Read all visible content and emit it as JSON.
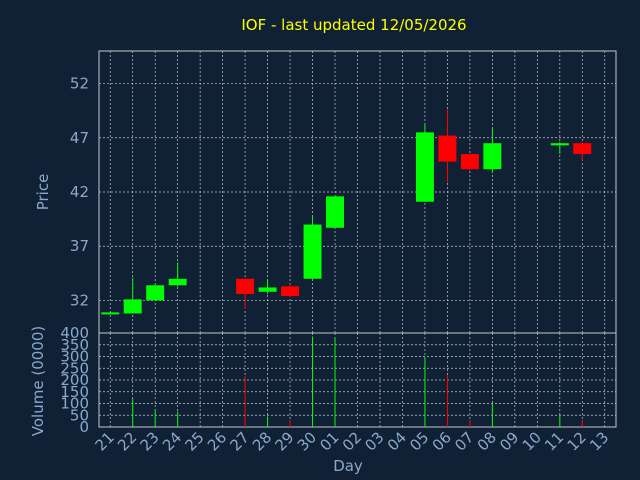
{
  "chart_data": {
    "type": "candlestick",
    "title": "IOF - last updated 12/05/2026",
    "xlabel": "Day",
    "price_panel": {
      "ylabel": "Price",
      "ylim": [
        29,
        55
      ],
      "yticks": [
        32,
        37,
        42,
        47,
        52
      ],
      "grid": true
    },
    "volume_panel": {
      "ylabel": "Volume (0000)",
      "ylim": [
        0,
        400
      ],
      "yticks": [
        0,
        50,
        100,
        150,
        200,
        250,
        300,
        350,
        400
      ],
      "grid": true
    },
    "x_tick_labels": [
      "21",
      "22",
      "23",
      "24",
      "25",
      "26",
      "27",
      "28",
      "29",
      "30",
      "01",
      "02",
      "03",
      "04",
      "05",
      "06",
      "07",
      "08",
      "09",
      "10",
      "11",
      "12",
      "13"
    ],
    "colors": {
      "up": "#00ff00",
      "down": "#ff0000",
      "background": "#102035",
      "grid": "#c8c8c8",
      "title": "#ffff00",
      "axis_text": "#8aa9cc"
    },
    "candles": [
      {
        "x": "21",
        "open": 30.8,
        "high": 30.9,
        "low": 30.7,
        "close": 30.9,
        "volume": 0
      },
      {
        "x": "22",
        "open": 30.8,
        "high": 34.1,
        "low": 30.8,
        "close": 32.1,
        "volume": 120
      },
      {
        "x": "23",
        "open": 32.0,
        "high": 33.5,
        "low": 32.0,
        "close": 33.4,
        "volume": 70
      },
      {
        "x": "24",
        "open": 33.4,
        "high": 35.5,
        "low": 33.3,
        "close": 34.0,
        "volume": 65
      },
      {
        "x": "27",
        "open": 34.0,
        "high": 34.0,
        "low": 31.2,
        "close": 32.6,
        "volume": 215
      },
      {
        "x": "28",
        "open": 32.8,
        "high": 33.9,
        "low": 32.6,
        "close": 33.2,
        "volume": 45
      },
      {
        "x": "29",
        "open": 33.3,
        "high": 33.5,
        "low": 32.3,
        "close": 32.4,
        "volume": 30
      },
      {
        "x": "30",
        "open": 34.0,
        "high": 39.7,
        "low": 34.0,
        "close": 39.0,
        "volume": 385
      },
      {
        "x": "01",
        "open": 38.7,
        "high": 41.6,
        "low": 38.6,
        "close": 41.6,
        "volume": 380
      },
      {
        "x": "05",
        "open": 41.1,
        "high": 48.2,
        "low": 41.1,
        "close": 47.5,
        "volume": 295
      },
      {
        "x": "06",
        "open": 47.2,
        "high": 49.6,
        "low": 42.9,
        "close": 44.8,
        "volume": 220
      },
      {
        "x": "07",
        "open": 45.5,
        "high": 45.5,
        "low": 44.0,
        "close": 44.1,
        "volume": 30
      },
      {
        "x": "08",
        "open": 44.1,
        "high": 47.9,
        "low": 43.8,
        "close": 46.5,
        "volume": 100
      },
      {
        "x": "11",
        "open": 46.3,
        "high": 46.6,
        "low": 45.5,
        "close": 46.5,
        "volume": 50
      },
      {
        "x": "12",
        "open": 46.5,
        "high": 46.6,
        "low": 44.9,
        "close": 45.5,
        "volume": 30
      }
    ]
  }
}
